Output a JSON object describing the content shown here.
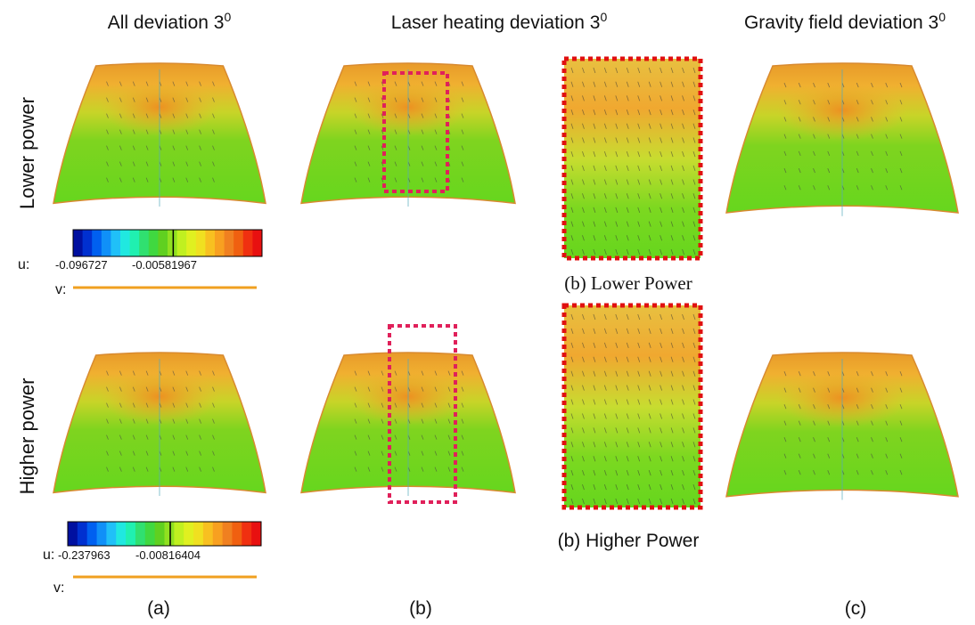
{
  "column_titles": [
    {
      "text": "All deviation 3",
      "sup": "0"
    },
    {
      "text": "Laser heating deviation 3",
      "sup": "0"
    },
    {
      "text": "Gravity field deviation 3",
      "sup": "0"
    }
  ],
  "row_labels": [
    "Lower power",
    "Higher power"
  ],
  "colorbars": [
    {
      "u_label": "u:",
      "min": "-0.096727",
      "mid": "-0.00581967",
      "v_label": "v:"
    },
    {
      "u_label": "u:",
      "min": "-0.237963",
      "mid": "-0.00816404",
      "v_label": "v:"
    }
  ],
  "zoom_captions": [
    "(b) Lower Power",
    "(b) Higher Power"
  ],
  "panel_labels": [
    "(a)",
    "(b)",
    "(c)"
  ]
}
